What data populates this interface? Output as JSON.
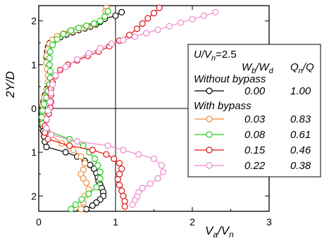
{
  "chart_data": {
    "type": "scatter",
    "xlabel": "V",
    "xlabel_sub": "a",
    "xlabel_sep": "/V",
    "xlabel_sub2": "n",
    "ylabel": "2Y/D",
    "xlim": [
      0,
      3
    ],
    "ylim": [
      -2.35,
      2.35
    ],
    "x_ticks": [
      "0",
      "1",
      "2",
      "3"
    ],
    "y_ticks": [
      "2",
      "1",
      "0",
      "1",
      "2"
    ],
    "y_tick_values": [
      2,
      1,
      0,
      -1,
      -2
    ],
    "legend": {
      "placement": "right",
      "condition_base": "U/V",
      "condition_sub": "n",
      "condition_val": "=2.5",
      "col1_base": "W",
      "col1_sub1": "b",
      "col1_sep": "/W",
      "col1_sub2": "d",
      "col2_base": "Q",
      "col2_sub": "n",
      "col2_rest": "/Q",
      "group1": "Without bypass",
      "group2": "With bypass",
      "entries": [
        {
          "wb_wd": "0.00",
          "qn_q": "1.00",
          "color": "#000000"
        },
        {
          "wb_wd": "0.03",
          "qn_q": "0.83",
          "color": "#f08c3c"
        },
        {
          "wb_wd": "0.08",
          "qn_q": "0.61",
          "color": "#22cc22"
        },
        {
          "wb_wd": "0.15",
          "qn_q": "0.46",
          "color": "#dd1111"
        },
        {
          "wb_wd": "0.22",
          "qn_q": "0.38",
          "color": "#ee88cc"
        }
      ]
    },
    "series": [
      {
        "color": "#000000",
        "x": [
          1.08,
          1.0,
          0.86,
          0.8,
          0.74,
          0.67,
          0.6,
          0.52,
          0.44,
          0.36,
          0.28,
          0.2,
          0.14,
          0.12,
          0.11,
          0.1,
          0.11,
          0.12,
          0.13,
          0.13,
          0.11,
          0.08,
          0.06,
          0.05,
          0.04,
          0.04,
          0.05,
          0.06,
          0.07,
          0.08,
          0.1,
          0.35,
          0.5,
          0.6,
          0.67,
          0.72,
          0.75,
          0.77,
          0.78,
          0.8,
          0.82,
          0.84,
          0.84,
          0.8,
          0.75,
          0.7,
          0.62
        ],
        "y": [
          2.2,
          2.12,
          2.05,
          1.98,
          1.92,
          1.87,
          1.83,
          1.79,
          1.74,
          1.69,
          1.63,
          1.57,
          1.49,
          1.4,
          1.3,
          1.18,
          1.04,
          0.9,
          0.75,
          0.6,
          0.45,
          0.3,
          0.15,
          0.02,
          -0.12,
          -0.26,
          -0.4,
          -0.52,
          -0.64,
          -0.76,
          -0.88,
          -1.0,
          -1.1,
          -1.2,
          -1.29,
          -1.38,
          -1.48,
          -1.58,
          -1.66,
          -1.74,
          -1.82,
          -1.91,
          -2.0,
          -2.08,
          -2.15,
          -2.22,
          -2.3
        ]
      },
      {
        "color": "#f08c3c",
        "x": [
          0.88,
          0.87,
          0.86,
          0.8,
          0.72,
          0.64,
          0.56,
          0.48,
          0.4,
          0.32,
          0.24,
          0.18,
          0.14,
          0.12,
          0.1,
          0.1,
          0.11,
          0.12,
          0.12,
          0.1,
          0.07,
          0.05,
          0.05,
          0.06,
          0.12,
          0.3,
          0.45,
          0.55,
          0.6,
          0.58,
          0.55,
          0.58,
          0.62,
          0.65,
          0.6,
          0.58,
          0.55
        ],
        "y": [
          2.3,
          2.22,
          2.1,
          2.0,
          1.93,
          1.88,
          1.84,
          1.8,
          1.76,
          1.71,
          1.65,
          1.57,
          1.48,
          1.35,
          1.2,
          1.05,
          0.9,
          0.75,
          0.6,
          0.42,
          0.25,
          0.08,
          -0.1,
          -0.3,
          -0.55,
          -0.8,
          -0.95,
          -1.1,
          -1.25,
          -1.4,
          -1.5,
          -1.6,
          -1.7,
          -1.85,
          -2.0,
          -2.15,
          -2.3
        ]
      },
      {
        "color": "#22cc22",
        "x": [
          0.9,
          0.86,
          0.8,
          0.72,
          0.62,
          0.52,
          0.42,
          0.32,
          0.24,
          0.18,
          0.15,
          0.14,
          0.14,
          0.15,
          0.15,
          0.14,
          0.12,
          0.1,
          0.07,
          0.05,
          0.04,
          0.05,
          0.1,
          0.4,
          0.58,
          0.66,
          0.73,
          0.77,
          0.8,
          0.8,
          0.75,
          0.65,
          0.56,
          0.48,
          0.42
        ],
        "y": [
          2.22,
          2.1,
          2.0,
          1.94,
          1.89,
          1.84,
          1.78,
          1.7,
          1.58,
          1.45,
          1.3,
          1.15,
          1.0,
          0.85,
          0.7,
          0.55,
          0.4,
          0.25,
          0.1,
          -0.05,
          -0.2,
          -0.35,
          -0.5,
          -0.7,
          -0.85,
          -1.0,
          -1.15,
          -1.3,
          -1.45,
          -1.6,
          -1.8,
          -1.95,
          -2.08,
          -2.2,
          -2.3
        ]
      },
      {
        "color": "#dd1111",
        "x": [
          1.57,
          1.5,
          1.42,
          1.35,
          1.28,
          1.18,
          1.05,
          0.92,
          0.78,
          0.64,
          0.5,
          0.38,
          0.28,
          0.22,
          0.18,
          0.16,
          0.16,
          0.16,
          0.15,
          0.13,
          0.1,
          0.08,
          0.08,
          0.12,
          0.4,
          0.7,
          0.88,
          0.98,
          1.05,
          1.08,
          1.05,
          1.03,
          1.05,
          1.08,
          1.1,
          1.12,
          1.12
        ],
        "y": [
          2.3,
          2.18,
          2.06,
          1.94,
          1.82,
          1.68,
          1.55,
          1.42,
          1.3,
          1.2,
          1.1,
          1.0,
          0.88,
          0.74,
          0.6,
          0.45,
          0.3,
          0.15,
          0.02,
          -0.12,
          -0.26,
          -0.4,
          -0.55,
          -0.7,
          -0.85,
          -0.95,
          -1.05,
          -1.15,
          -1.25,
          -1.38,
          -1.5,
          -1.62,
          -1.75,
          -1.88,
          -2.0,
          -2.12,
          -2.24
        ]
      },
      {
        "color": "#ee88cc",
        "x": [
          2.3,
          2.15,
          2.0,
          1.85,
          1.7,
          1.55,
          1.4,
          1.25,
          1.1,
          0.95,
          0.8,
          0.65,
          0.5,
          0.35,
          0.22,
          0.18,
          0.16,
          0.15,
          0.12,
          0.1,
          0.1,
          0.16,
          0.5,
          0.9,
          1.1,
          1.3,
          1.5,
          1.6,
          1.62,
          1.55,
          1.45,
          1.35,
          1.3,
          1.28,
          1.25,
          1.22
        ],
        "y": [
          2.2,
          2.12,
          2.04,
          1.96,
          1.88,
          1.8,
          1.72,
          1.64,
          1.56,
          1.48,
          1.38,
          1.26,
          1.12,
          0.95,
          0.75,
          0.55,
          0.35,
          0.15,
          -0.05,
          -0.25,
          -0.45,
          -0.6,
          -0.75,
          -0.85,
          -0.95,
          -1.05,
          -1.15,
          -1.3,
          -1.45,
          -1.6,
          -1.72,
          -1.82,
          -1.92,
          -2.02,
          -2.1,
          -2.2
        ]
      }
    ]
  }
}
